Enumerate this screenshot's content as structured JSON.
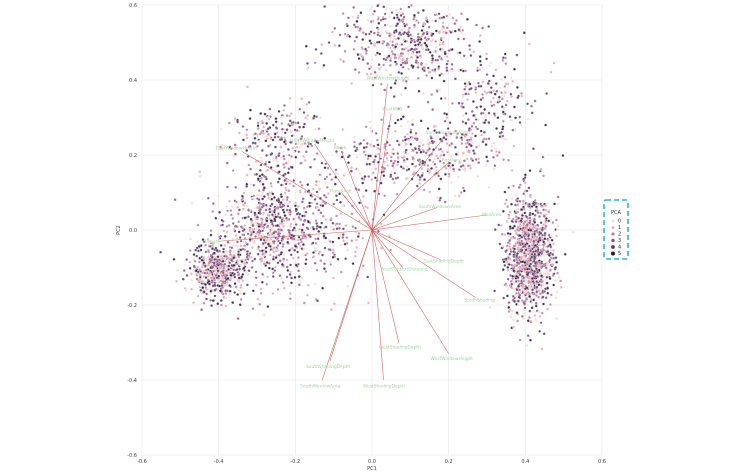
{
  "chart_data": {
    "type": "scatter",
    "title": "",
    "xlabel": "PC1",
    "ylabel": "PC2",
    "xlim": [
      -0.6,
      0.6
    ],
    "ylim": [
      -0.6,
      0.6
    ],
    "x_ticks": [
      "-0.6",
      "-0.4",
      "-0.2",
      "0.0",
      "0.2",
      "0.4",
      "0.6"
    ],
    "y_ticks": [
      "-0.6",
      "-0.4",
      "-0.2",
      "0.0",
      "0.2",
      "0.4",
      "0.6"
    ],
    "grid": true,
    "legend": {
      "title": "PCA",
      "placement": "right",
      "entries": [
        "0",
        "1",
        "2",
        "3",
        "4",
        "5"
      ],
      "colors": [
        "#f6d9d4",
        "#e9a9ae",
        "#c07d9c",
        "#8e5888",
        "#5c3a6a",
        "#2a1d3d"
      ]
    },
    "clusters": [
      {
        "x": -0.27,
        "y": 0.0,
        "sx": 0.07,
        "sy": 0.07,
        "n": 700
      },
      {
        "x": -0.4,
        "y": -0.11,
        "sx": 0.035,
        "sy": 0.035,
        "n": 500
      },
      {
        "x": 0.41,
        "y": -0.07,
        "sx": 0.03,
        "sy": 0.08,
        "n": 1100
      },
      {
        "x": 0.08,
        "y": 0.5,
        "sx": 0.09,
        "sy": 0.06,
        "n": 500
      },
      {
        "x": 0.12,
        "y": 0.2,
        "sx": 0.1,
        "sy": 0.05,
        "n": 400
      },
      {
        "x": -0.25,
        "y": 0.23,
        "sx": 0.06,
        "sy": 0.05,
        "n": 250
      },
      {
        "x": 0.3,
        "y": 0.35,
        "sx": 0.07,
        "sy": 0.07,
        "n": 200
      },
      {
        "x": -0.1,
        "y": 0.0,
        "sx": 0.05,
        "sy": 0.08,
        "n": 150
      }
    ],
    "vectors": [
      {
        "label": "WestWindowHeight",
        "x": 0.04,
        "y": 0.39
      },
      {
        "label": "WestWall",
        "x": 0.05,
        "y": 0.31
      },
      {
        "label": "NorthWindowHeight",
        "x": -0.15,
        "y": 0.23
      },
      {
        "label": "Width",
        "x": -0.08,
        "y": 0.21
      },
      {
        "label": "EastWindowHeight",
        "x": -0.34,
        "y": 0.21
      },
      {
        "label": "NorthWindowsWidth",
        "x": 0.19,
        "y": 0.25
      },
      {
        "label": "RoofArea",
        "x": 0.2,
        "y": 0.18
      },
      {
        "label": "FloorArea",
        "x": -0.08,
        "y": 0.1
      },
      {
        "label": "SouthWindowsArea",
        "x": 0.17,
        "y": 0.06
      },
      {
        "label": "WallArea",
        "x": 0.3,
        "y": 0.04
      },
      {
        "label": "Length",
        "x": -0.4,
        "y": -0.03
      },
      {
        "label": "EastShadingDepth",
        "x": 0.18,
        "y": -0.08
      },
      {
        "label": "WestContextDistance",
        "x": 0.08,
        "y": -0.1
      },
      {
        "label": "SouthShading",
        "x": 0.27,
        "y": -0.18
      },
      {
        "label": "SouthShadingDepth",
        "x": -0.11,
        "y": -0.35
      },
      {
        "label": "WestShadingDepth",
        "x": 0.07,
        "y": -0.3
      },
      {
        "label": "WestWindowHeight",
        "x": 0.2,
        "y": -0.33
      },
      {
        "label": "SouthWindowArea",
        "x": -0.13,
        "y": -0.4
      },
      {
        "label": "WestShadingDepth",
        "x": 0.03,
        "y": -0.4
      }
    ]
  }
}
